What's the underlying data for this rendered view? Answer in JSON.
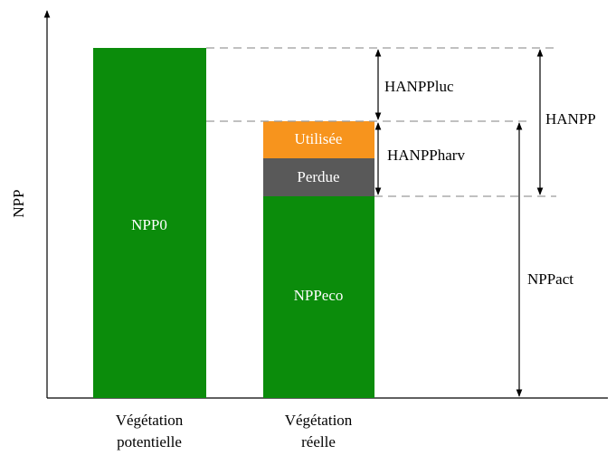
{
  "axis": {
    "y_label": "NPP"
  },
  "bars": [
    {
      "category": [
        "Végétation",
        "potentielle"
      ],
      "segments": [
        "NPP0"
      ]
    },
    {
      "category": [
        "Végétation",
        "réelle"
      ],
      "segments": [
        "NPPeco",
        "Perdue",
        "Utilisée"
      ]
    }
  ],
  "annotations": [
    "HANPPluc",
    "HANPPharv",
    "HANPP",
    "NPPact"
  ]
}
